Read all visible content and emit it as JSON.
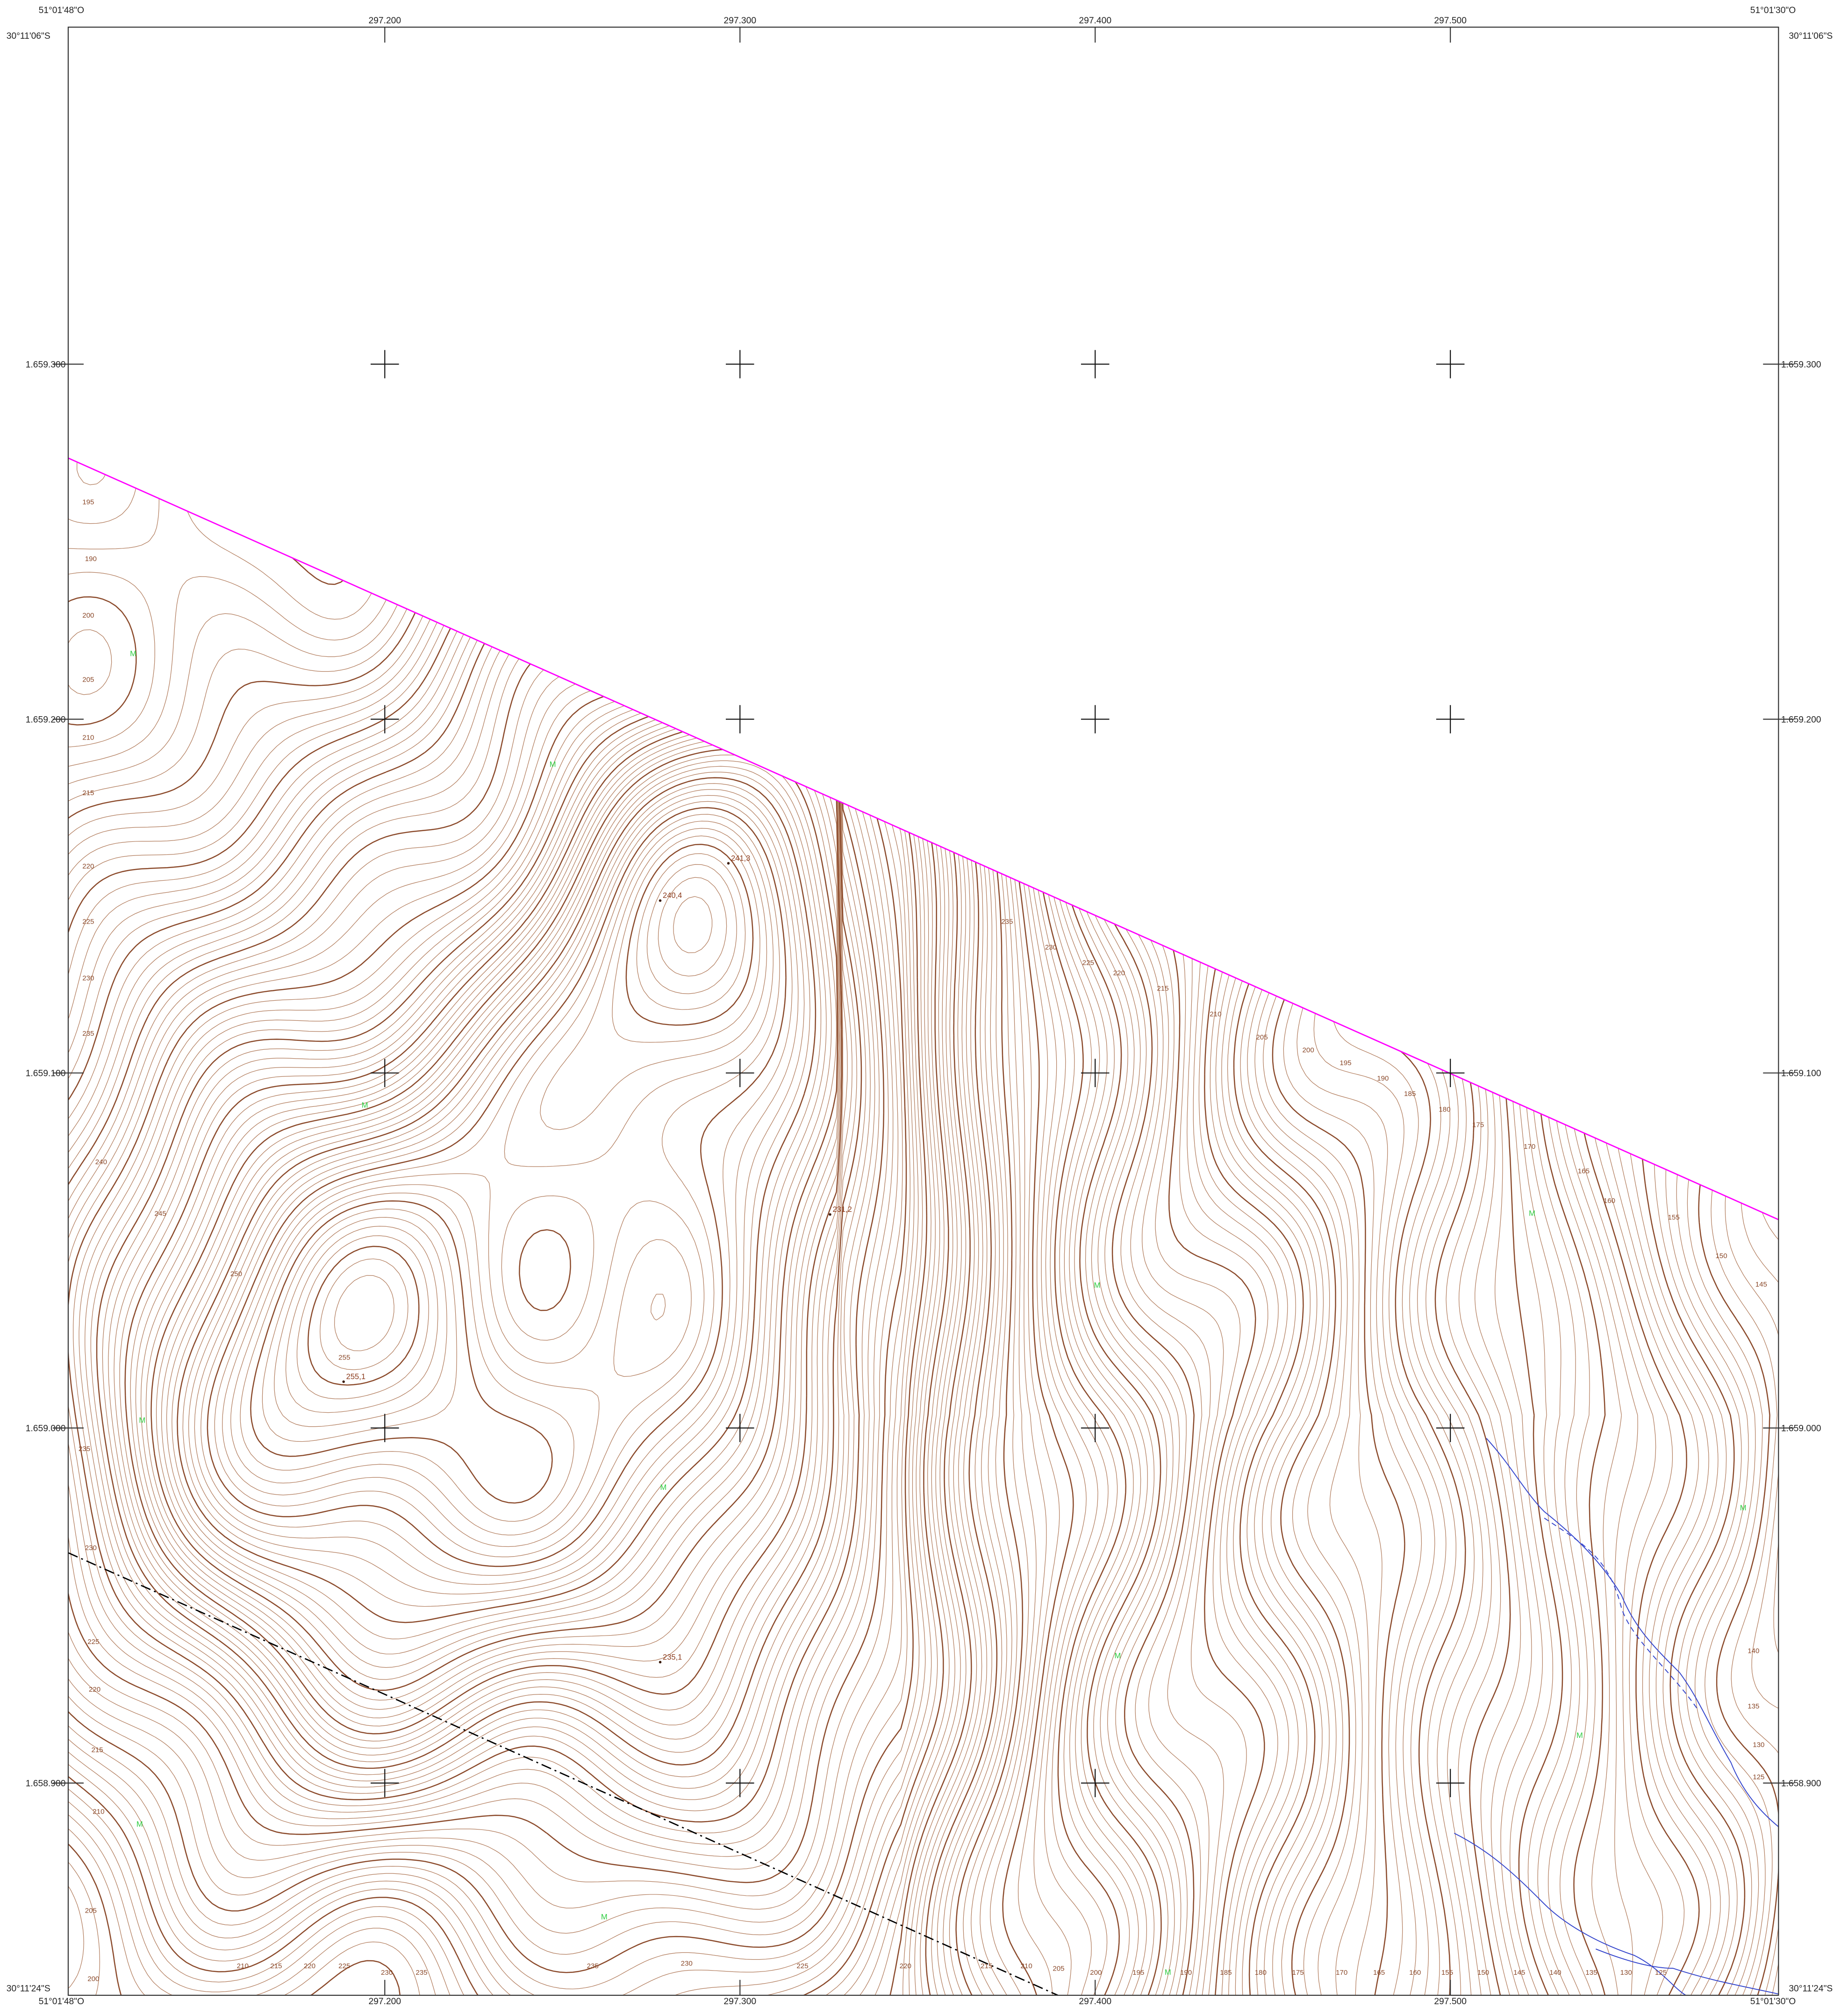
{
  "map": {
    "corners": {
      "nw_lon": "51°01'48\"O",
      "nw_lat": "30°11'06\"S",
      "ne_lon": "51°01'30\"O",
      "ne_lat": "30°11'06\"S",
      "sw_lat": "30°11'24\"S",
      "sw_lon": "51°01'48\"O",
      "se_lat": "30°11'24\"S",
      "se_lon": "51°01'30\"O"
    },
    "eastings": [
      "297.200",
      "297.300",
      "297.400",
      "297.500"
    ],
    "northings": [
      "1.659.300",
      "1.659.200",
      "1.659.100",
      "1.659.000",
      "1.658.900"
    ],
    "spot_heights": [
      "241,3",
      "240,4",
      "231,2",
      "255,1",
      "235,1"
    ],
    "contour_labels": [
      "195",
      "190",
      "200",
      "205",
      "210",
      "215",
      "220",
      "225",
      "230",
      "235",
      "240",
      "245",
      "250",
      "255",
      "235",
      "230",
      "225",
      "220",
      "215",
      "210",
      "205",
      "200",
      "210",
      "215",
      "220",
      "225",
      "230",
      "235",
      "235",
      "230",
      "225",
      "220",
      "215",
      "210",
      "205",
      "200",
      "195",
      "190",
      "185",
      "180",
      "175",
      "170",
      "165",
      "160",
      "155",
      "150",
      "145",
      "140",
      "135",
      "130",
      "125",
      "235",
      "230",
      "225",
      "220",
      "215",
      "210",
      "205",
      "200",
      "195",
      "190",
      "185",
      "180",
      "175",
      "170",
      "165",
      "160",
      "155",
      "150",
      "145",
      "140",
      "135",
      "130",
      "125"
    ],
    "vegetation_marks": [
      "M",
      "M",
      "M",
      "M",
      "M",
      "M",
      "M",
      "M",
      "M",
      "M",
      "M",
      "M",
      "M"
    ]
  }
}
